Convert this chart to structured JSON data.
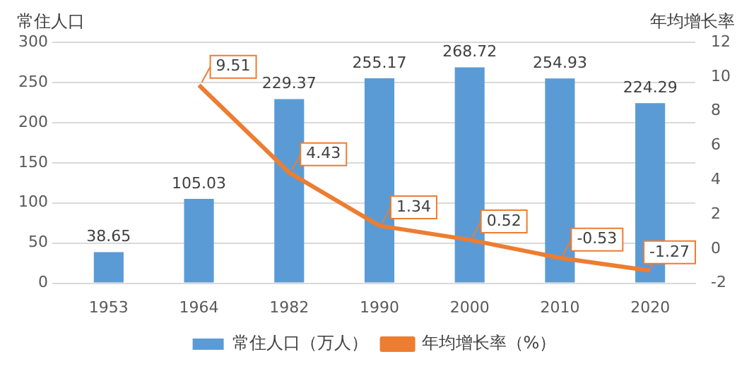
{
  "chart_data": {
    "type": "bar",
    "categories": [
      "1953",
      "1964",
      "1982",
      "1990",
      "2000",
      "2010",
      "2020"
    ],
    "ylabel": "常住人口",
    "y2label": "年均增长率",
    "series": [
      {
        "name": "常住人口（万人）",
        "color": "#5b9bd5",
        "values": [
          38.65,
          105.03,
          229.37,
          255.17,
          268.72,
          254.93,
          224.29
        ]
      },
      {
        "name": "年均增长率（%）",
        "type": "line",
        "axis": "y2",
        "color": "#ed7d31",
        "values": [
          null,
          9.51,
          4.43,
          1.34,
          0.52,
          -0.53,
          -1.27
        ]
      }
    ],
    "ylim": [
      0,
      300
    ],
    "yticks": [
      0,
      50,
      100,
      150,
      200,
      250,
      300
    ],
    "y2lim": [
      -2,
      12
    ],
    "y2ticks": [
      -2,
      0,
      2,
      4,
      6,
      8,
      10,
      12
    ],
    "grid": "y",
    "legend": "bottom",
    "marker": "none",
    "data_labels": true
  }
}
